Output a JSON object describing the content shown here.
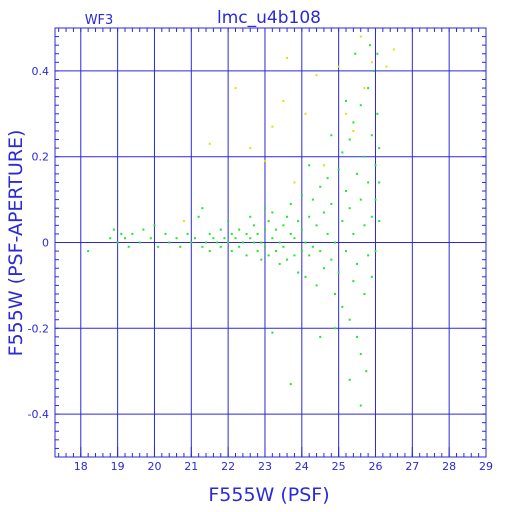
{
  "chart_data": {
    "type": "scatter",
    "title": "lmc_u4b108",
    "subtitle": "WF3",
    "xlabel": "F555W (PSF)",
    "ylabel": "F555W (PSF-APERTURE)",
    "xlim": [
      17.3,
      29.0
    ],
    "ylim": [
      -0.5,
      0.5
    ],
    "xticks": [
      18,
      19,
      20,
      21,
      22,
      23,
      24,
      25,
      26,
      27,
      28,
      29
    ],
    "yticks": [
      -0.4,
      -0.2,
      0,
      0.2,
      0.4
    ],
    "xtick_labels": [
      "18",
      "19",
      "20",
      "21",
      "22",
      "23",
      "24",
      "25",
      "26",
      "27",
      "28",
      "29"
    ],
    "ytick_labels": [
      "-0.4",
      "-0.2",
      "0",
      "0.2",
      "0.4"
    ],
    "grid": true,
    "colors": {
      "axes": "#2a2ad8",
      "grid": "#2a2ad8",
      "main_points": "#22e622",
      "outlier_points": "#e6e000",
      "background": "#ffffff"
    },
    "series": [
      {
        "role": "main",
        "color": "#22e622",
        "points": [
          [
            18.2,
            -0.02
          ],
          [
            18.8,
            0.01
          ],
          [
            18.9,
            0.03
          ],
          [
            19.0,
            0.0
          ],
          [
            19.1,
            0.02
          ],
          [
            19.2,
            0.01
          ],
          [
            19.3,
            -0.01
          ],
          [
            19.4,
            0.02
          ],
          [
            19.6,
            0.0
          ],
          [
            19.7,
            0.03
          ],
          [
            19.9,
            0.01
          ],
          [
            20.0,
            0.04
          ],
          [
            20.1,
            -0.01
          ],
          [
            20.3,
            0.02
          ],
          [
            20.4,
            0.0
          ],
          [
            20.6,
            0.01
          ],
          [
            20.7,
            -0.01
          ],
          [
            20.9,
            0.02
          ],
          [
            21.0,
            0.0
          ],
          [
            21.1,
            0.01
          ],
          [
            21.2,
            0.06
          ],
          [
            21.3,
            0.08
          ],
          [
            21.3,
            -0.01
          ],
          [
            21.4,
            0.0
          ],
          [
            21.5,
            0.02
          ],
          [
            21.5,
            -0.02
          ],
          [
            21.6,
            0.01
          ],
          [
            21.7,
            0.0
          ],
          [
            21.8,
            0.03
          ],
          [
            21.8,
            -0.01
          ],
          [
            21.9,
            0.01
          ],
          [
            22.0,
            0.0
          ],
          [
            22.0,
            0.05
          ],
          [
            22.1,
            -0.02
          ],
          [
            22.1,
            0.02
          ],
          [
            22.2,
            0.01
          ],
          [
            22.3,
            -0.01
          ],
          [
            22.3,
            0.03
          ],
          [
            22.4,
            0.0
          ],
          [
            22.5,
            0.02
          ],
          [
            22.5,
            -0.03
          ],
          [
            22.6,
            0.01
          ],
          [
            22.7,
            0.0
          ],
          [
            22.7,
            0.04
          ],
          [
            22.8,
            -0.02
          ],
          [
            22.8,
            0.02
          ],
          [
            22.9,
            0.0
          ],
          [
            22.9,
            -0.04
          ],
          [
            23.0,
            0.03
          ],
          [
            23.0,
            -0.01
          ],
          [
            23.1,
            0.05
          ],
          [
            23.1,
            -0.03
          ],
          [
            23.2,
            0.01
          ],
          [
            23.2,
            0.07
          ],
          [
            23.3,
            -0.02
          ],
          [
            23.3,
            0.03
          ],
          [
            23.4,
            0.0
          ],
          [
            23.4,
            -0.05
          ],
          [
            23.5,
            0.04
          ],
          [
            23.5,
            -0.01
          ],
          [
            23.6,
            0.06
          ],
          [
            23.6,
            -0.04
          ],
          [
            23.7,
            0.02
          ],
          [
            23.7,
            0.09
          ],
          [
            23.8,
            -0.03
          ],
          [
            23.8,
            0.01
          ],
          [
            23.9,
            0.05
          ],
          [
            23.9,
            -0.07
          ],
          [
            24.0,
            0.03
          ],
          [
            24.0,
            -0.02
          ],
          [
            24.0,
            0.11
          ],
          [
            24.1,
            0.0
          ],
          [
            24.1,
            -0.08
          ],
          [
            24.2,
            0.06
          ],
          [
            24.2,
            -0.03
          ],
          [
            24.3,
            0.1
          ],
          [
            24.3,
            -0.01
          ],
          [
            24.4,
            0.04
          ],
          [
            24.4,
            -0.1
          ],
          [
            24.5,
            0.13
          ],
          [
            24.5,
            -0.02
          ],
          [
            24.6,
            0.07
          ],
          [
            24.6,
            -0.06
          ],
          [
            24.7,
            0.02
          ],
          [
            24.7,
            0.15
          ],
          [
            24.8,
            -0.04
          ],
          [
            24.8,
            0.09
          ],
          [
            24.9,
            0.0
          ],
          [
            24.9,
            -0.12
          ],
          [
            25.0,
            0.17
          ],
          [
            25.0,
            -0.07
          ],
          [
            25.1,
            0.05
          ],
          [
            25.1,
            0.21
          ],
          [
            25.1,
            -0.15
          ],
          [
            25.2,
            0.12
          ],
          [
            25.2,
            -0.02
          ],
          [
            25.3,
            0.24
          ],
          [
            25.3,
            -0.18
          ],
          [
            25.3,
            0.08
          ],
          [
            25.4,
            -0.09
          ],
          [
            25.4,
            0.28
          ],
          [
            25.4,
            0.02
          ],
          [
            25.5,
            -0.22
          ],
          [
            25.5,
            0.16
          ],
          [
            25.5,
            -0.05
          ],
          [
            25.6,
            0.32
          ],
          [
            25.6,
            0.1
          ],
          [
            25.6,
            -0.26
          ],
          [
            25.7,
            0.04
          ],
          [
            25.7,
            0.2
          ],
          [
            25.7,
            -0.12
          ],
          [
            25.8,
            0.36
          ],
          [
            25.8,
            -0.03
          ],
          [
            25.8,
            0.14
          ],
          [
            25.9,
            0.25
          ],
          [
            25.9,
            -0.08
          ],
          [
            25.9,
            0.06
          ],
          [
            26.0,
            0.18
          ],
          [
            26.0,
            0.1
          ],
          [
            26.0,
            -0.02
          ],
          [
            26.1,
            0.22
          ],
          [
            26.1,
            0.14
          ],
          [
            26.05,
            0.44
          ],
          [
            26.05,
            0.3
          ],
          [
            26.1,
            0.05
          ],
          [
            25.95,
            0.4
          ],
          [
            25.85,
            0.46
          ],
          [
            25.3,
            -0.32
          ],
          [
            25.6,
            -0.38
          ],
          [
            24.5,
            -0.22
          ],
          [
            23.7,
            -0.33
          ],
          [
            23.2,
            -0.21
          ],
          [
            24.8,
            0.25
          ],
          [
            25.2,
            0.33
          ],
          [
            25.45,
            0.44
          ],
          [
            24.2,
            0.18
          ],
          [
            23.0,
            0.08
          ],
          [
            22.6,
            0.06
          ],
          [
            24.9,
            -0.2
          ],
          [
            25.75,
            -0.3
          ]
        ]
      },
      {
        "role": "outliers",
        "color": "#e6e000",
        "points": [
          [
            21.5,
            0.23
          ],
          [
            22.2,
            0.36
          ],
          [
            22.6,
            0.22
          ],
          [
            23.0,
            0.19
          ],
          [
            23.2,
            0.27
          ],
          [
            23.5,
            0.33
          ],
          [
            23.6,
            0.43
          ],
          [
            24.1,
            0.3
          ],
          [
            24.4,
            0.39
          ],
          [
            24.6,
            0.18
          ],
          [
            25.0,
            0.41
          ],
          [
            25.2,
            0.3
          ],
          [
            25.4,
            0.26
          ],
          [
            25.6,
            0.48
          ],
          [
            25.7,
            0.36
          ],
          [
            25.9,
            0.42
          ],
          [
            26.3,
            0.41
          ],
          [
            26.5,
            0.45
          ],
          [
            20.8,
            0.05
          ],
          [
            23.8,
            0.14
          ]
        ]
      }
    ]
  }
}
